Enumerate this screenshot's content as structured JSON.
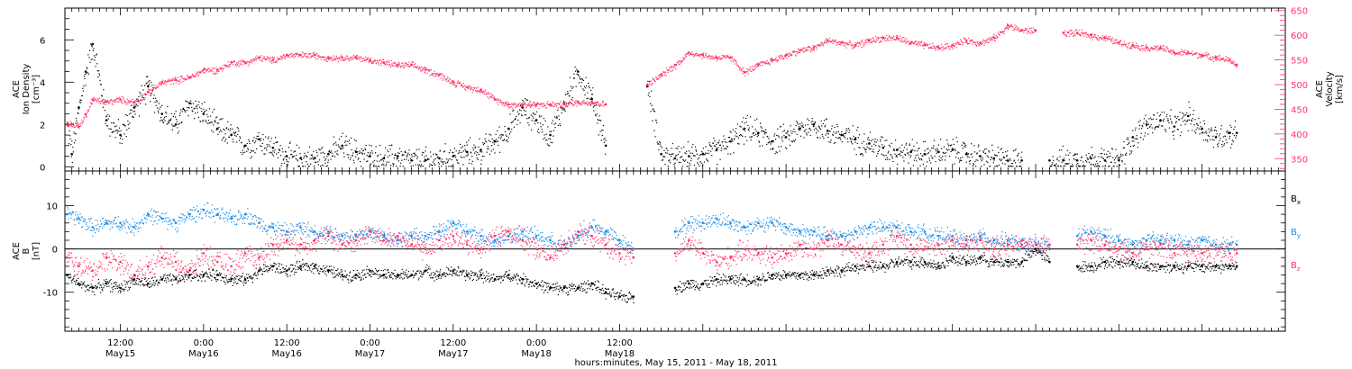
{
  "chart_data": [
    {
      "type": "scatter",
      "panel": "top",
      "ylabel": [
        "ACE",
        "Ion Density",
        "[cm⁻³]"
      ],
      "ylabel_right": [
        "ACE",
        "Velocity",
        "[km/s]"
      ],
      "ylim": [
        -0.2,
        7.5
      ],
      "ylim_right": [
        325,
        655
      ],
      "yticks": [
        "0",
        "2",
        "4",
        "6"
      ],
      "yticks_right": [
        "350",
        "400",
        "450",
        "500",
        "550",
        "600",
        "650"
      ],
      "series": [
        {
          "name": "",
          "axis": "left",
          "color": "#000000",
          "x": [
            0.3,
            1,
            2,
            3,
            4,
            6,
            8,
            10,
            12,
            14,
            16,
            18,
            20,
            22,
            24,
            26,
            28,
            30,
            32,
            34,
            36,
            38,
            40,
            42,
            44,
            46,
            48,
            50,
            52,
            54,
            56,
            58,
            60,
            62,
            64,
            66,
            68,
            70,
            72,
            74,
            76,
            78,
            80,
            82,
            84,
            86,
            88,
            90,
            92,
            94,
            96,
            98,
            100,
            102,
            104,
            106,
            108,
            110,
            112,
            114,
            116,
            118,
            120,
            122,
            124,
            126,
            128,
            130,
            132,
            134,
            136,
            138,
            140,
            142,
            144,
            146,
            148,
            150,
            152,
            154,
            156,
            158,
            160,
            162,
            164,
            166,
            168,
            169
          ],
          "y": [
            2.0,
            0.6,
            2.8,
            4.5,
            5.8,
            2.2,
            1.5,
            2.8,
            3.8,
            2.5,
            2.0,
            3.0,
            2.5,
            1.8,
            1.5,
            1.0,
            1.3,
            0.9,
            0.5,
            0.4,
            0.4,
            0.6,
            1.0,
            0.7,
            0.5,
            0.4,
            0.5,
            0.3,
            0.3,
            0.4,
            0.5,
            0.7,
            0.8,
            1.2,
            1.8,
            2.8,
            2.2,
            1.5,
            3.0,
            4.5,
            3.2,
            1.0,
            null,
            null,
            3.8,
            0.6,
            0.4,
            0.5,
            0.6,
            0.8,
            1.2,
            1.8,
            1.6,
            1.2,
            1.4,
            1.8,
            2.0,
            1.7,
            1.5,
            1.3,
            1.1,
            0.9,
            0.8,
            0.7,
            0.6,
            0.7,
            0.8,
            0.6,
            0.5,
            0.4,
            0.3,
            0.3,
            null,
            0.3,
            0.3,
            0.3,
            0.4,
            0.3,
            0.3,
            1.4,
            2.0,
            2.2,
            1.9,
            2.4,
            1.8,
            1.4,
            1.6,
            1.6
          ]
        },
        {
          "name": "",
          "axis": "right",
          "color": "#ff3366",
          "x": [
            0.3,
            1,
            2,
            3,
            4,
            6,
            8,
            10,
            12,
            14,
            16,
            18,
            20,
            22,
            24,
            26,
            28,
            30,
            32,
            34,
            36,
            38,
            40,
            42,
            44,
            46,
            48,
            50,
            52,
            54,
            56,
            58,
            60,
            62,
            64,
            66,
            68,
            70,
            72,
            74,
            76,
            78,
            80,
            82,
            84,
            86,
            88,
            90,
            92,
            94,
            96,
            98,
            100,
            102,
            104,
            106,
            108,
            110,
            112,
            114,
            116,
            118,
            120,
            122,
            124,
            126,
            128,
            130,
            132,
            134,
            136,
            138,
            140,
            142,
            144,
            146,
            148,
            150,
            152,
            154,
            156,
            158,
            160,
            162,
            164,
            166,
            168,
            169
          ],
          "y": [
            420,
            420,
            415,
            440,
            470,
            465,
            470,
            465,
            485,
            505,
            510,
            515,
            530,
            530,
            545,
            545,
            555,
            550,
            560,
            560,
            560,
            555,
            555,
            555,
            550,
            545,
            540,
            540,
            530,
            520,
            505,
            495,
            490,
            470,
            460,
            460,
            460,
            460,
            460,
            465,
            465,
            460,
            null,
            null,
            500,
            520,
            540,
            565,
            560,
            555,
            555,
            525,
            540,
            550,
            560,
            570,
            575,
            590,
            585,
            580,
            590,
            595,
            595,
            585,
            580,
            575,
            580,
            590,
            585,
            595,
            620,
            610,
            610,
            null,
            605,
            605,
            600,
            595,
            585,
            580,
            575,
            575,
            565,
            565,
            560,
            555,
            550,
            540
          ]
        }
      ]
    },
    {
      "type": "scatter",
      "panel": "bottom",
      "ylabel": [
        "ACE",
        "B",
        "[nT]"
      ],
      "ylim": [
        -19,
        18
      ],
      "yticks": [
        "-10",
        "0",
        "10"
      ],
      "series": [
        {
          "name": "Bx",
          "color": "#000000",
          "x": [
            0.3,
            2,
            4,
            6,
            8,
            10,
            12,
            14,
            16,
            18,
            20,
            22,
            24,
            26,
            28,
            30,
            32,
            34,
            36,
            38,
            40,
            42,
            44,
            46,
            48,
            50,
            52,
            54,
            56,
            58,
            60,
            62,
            64,
            66,
            68,
            70,
            72,
            74,
            76,
            78,
            80,
            82,
            84,
            86,
            88,
            90,
            92,
            94,
            96,
            98,
            100,
            102,
            104,
            106,
            108,
            110,
            112,
            114,
            116,
            118,
            120,
            122,
            124,
            126,
            128,
            130,
            132,
            134,
            136,
            138,
            140,
            142,
            144,
            146,
            148,
            150,
            152,
            154,
            156,
            158,
            160,
            162,
            164,
            166,
            168,
            169
          ],
          "y": [
            -6,
            -8,
            -9,
            -8,
            -9,
            -7,
            -8,
            -7,
            -7,
            -6,
            -6,
            -6,
            -7,
            -7,
            -5,
            -4,
            -5,
            -4,
            -4,
            -5,
            -6,
            -6,
            -5,
            -6,
            -6,
            -6,
            -5,
            -6,
            -5,
            -6,
            -6,
            -7,
            -6,
            -7,
            -8,
            -9,
            -9,
            -9,
            -8,
            -10,
            -11,
            -11,
            null,
            null,
            -9,
            -8,
            -8,
            -7,
            -7,
            -7,
            -7,
            -6,
            -6,
            -6,
            -6,
            -5,
            -5,
            -4,
            -4,
            -4,
            -3,
            -3,
            -3,
            -4,
            -2,
            -3,
            -2,
            -3,
            -3,
            -3,
            0,
            -3,
            null,
            -4,
            -4,
            -3,
            -3,
            -3,
            -4,
            -4,
            -4,
            -4,
            -4,
            -4,
            -4,
            -4
          ]
        },
        {
          "name": "By",
          "color": "#1a8ce6",
          "x": [
            0.3,
            2,
            4,
            6,
            8,
            10,
            12,
            14,
            16,
            18,
            20,
            22,
            24,
            26,
            28,
            30,
            32,
            34,
            36,
            38,
            40,
            42,
            44,
            46,
            48,
            50,
            52,
            54,
            56,
            58,
            60,
            62,
            64,
            66,
            68,
            70,
            72,
            74,
            76,
            78,
            80,
            82,
            84,
            86,
            88,
            90,
            92,
            94,
            96,
            98,
            100,
            102,
            104,
            106,
            108,
            110,
            112,
            114,
            116,
            118,
            120,
            122,
            124,
            126,
            128,
            130,
            132,
            134,
            136,
            138,
            140,
            142,
            144,
            146,
            148,
            150,
            152,
            154,
            156,
            158,
            160,
            162,
            164,
            166,
            168,
            169
          ],
          "y": [
            8,
            7,
            5,
            6,
            6,
            5,
            8,
            7,
            6,
            8,
            9,
            8,
            7,
            8,
            6,
            5,
            4,
            5,
            4,
            4,
            3,
            3,
            4,
            3,
            2,
            3,
            3,
            4,
            6,
            4,
            3,
            2,
            3,
            4,
            3,
            2,
            1,
            3,
            5,
            4,
            2,
            0,
            null,
            null,
            4,
            6,
            6,
            7,
            6,
            5,
            6,
            6,
            5,
            4,
            4,
            3,
            3,
            4,
            5,
            5,
            5,
            4,
            4,
            3,
            3,
            2,
            3,
            2,
            2,
            1,
            1,
            1,
            null,
            3,
            4,
            3,
            2,
            1,
            2,
            2,
            2,
            1,
            2,
            1,
            1,
            1
          ]
        },
        {
          "name": "Bz",
          "color": "#ff3366",
          "x": [
            0.3,
            2,
            4,
            6,
            8,
            10,
            12,
            14,
            16,
            18,
            20,
            22,
            24,
            26,
            28,
            30,
            32,
            34,
            36,
            38,
            40,
            42,
            44,
            46,
            48,
            50,
            52,
            54,
            56,
            58,
            60,
            62,
            64,
            66,
            68,
            70,
            72,
            74,
            76,
            78,
            80,
            82,
            84,
            86,
            88,
            90,
            92,
            94,
            96,
            98,
            100,
            102,
            104,
            106,
            108,
            110,
            112,
            114,
            116,
            118,
            120,
            122,
            124,
            126,
            128,
            130,
            132,
            134,
            136,
            138,
            140,
            142,
            144,
            146,
            148,
            150,
            152,
            154,
            156,
            158,
            160,
            162,
            164,
            166,
            168,
            169
          ],
          "y": [
            -2,
            -4,
            -5,
            -2,
            -3,
            -6,
            -4,
            -2,
            -3,
            -5,
            -1,
            -3,
            -4,
            -1,
            -2,
            1,
            2,
            1,
            2,
            3,
            1,
            2,
            4,
            2,
            3,
            1,
            0,
            2,
            3,
            1,
            0,
            3,
            4,
            2,
            0,
            -2,
            1,
            4,
            3,
            1,
            -1,
            -2,
            null,
            null,
            -1,
            2,
            -1,
            -3,
            -2,
            0,
            -1,
            -2,
            -1,
            1,
            0,
            2,
            1,
            0,
            -1,
            1,
            3,
            1,
            0,
            1,
            2,
            1,
            2,
            0,
            1,
            2,
            1,
            1,
            null,
            1,
            2,
            1,
            0,
            -1,
            0,
            1,
            -1,
            0,
            -1,
            0,
            -1,
            -1
          ]
        }
      ],
      "zero_line": true
    }
  ],
  "x_axis": {
    "time_labels": [
      "12:00",
      "0:00",
      "12:00",
      "0:00",
      "12:00",
      "0:00",
      "12:00"
    ],
    "date_labels": [
      "May15",
      "May16",
      "May16",
      "May17",
      "May17",
      "May18",
      "May18"
    ],
    "xlabel": "hours:minutes, May 15, 2011 - May 18, 2011"
  },
  "legend": {
    "bx": {
      "base": "B",
      "sub": "x",
      "color": "#000000"
    },
    "by": {
      "base": "B",
      "sub": "y",
      "color": "#1a8ce6"
    },
    "bz": {
      "base": "B",
      "sub": "z",
      "color": "#ff3366"
    }
  }
}
